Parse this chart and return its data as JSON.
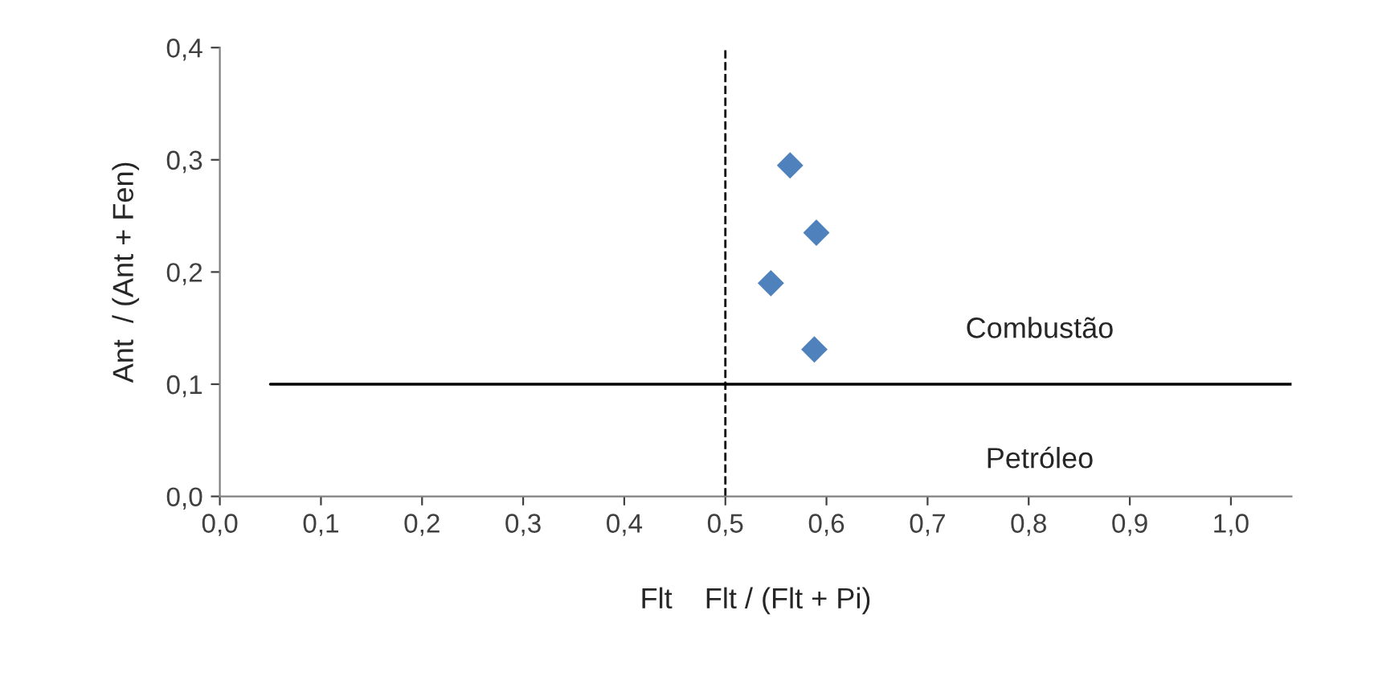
{
  "chart_data": {
    "type": "scatter",
    "xlabel": "Flt    Flt / (Flt + Pi)",
    "ylabel": "Ant  / (Ant + Fen)",
    "series": [
      {
        "color": "#4f81bd",
        "marker": "diamond",
        "x": [
          0.564,
          0.59,
          0.545,
          0.588
        ],
        "values": [
          0.295,
          0.235,
          0.19,
          0.131
        ]
      },
      {
        "type": "line",
        "color": "#000000",
        "marker": "none",
        "line_style": "solid",
        "x": [
          0.05,
          1.06
        ],
        "values": [
          0.1,
          0.1
        ]
      }
    ],
    "ref_lines": [
      {
        "axis": "x",
        "value": 0.5,
        "color": "#000000",
        "line_style": "dashed"
      }
    ],
    "annotations": [
      "Combustão",
      "Petróleo"
    ],
    "xlim": [
      0,
      1.06
    ],
    "ylim": [
      0,
      0.4
    ],
    "xticks": [
      {
        "value": 0,
        "label": "0,0"
      },
      {
        "value": 0.1,
        "label": "0,1"
      },
      {
        "value": 0.2,
        "label": "0,2"
      },
      {
        "value": 0.3,
        "label": "0,3"
      },
      {
        "value": 0.4,
        "label": "0,4"
      },
      {
        "value": 0.5,
        "label": "0,5"
      },
      {
        "value": 0.6,
        "label": "0,6"
      },
      {
        "value": 0.7,
        "label": "0,7"
      },
      {
        "value": 0.8,
        "label": "0,8"
      },
      {
        "value": 0.9,
        "label": "0,9"
      },
      {
        "value": 1.0,
        "label": "1,0"
      }
    ],
    "yticks": [
      {
        "value": 0,
        "label": "0,0"
      },
      {
        "value": 0.1,
        "label": "0,1"
      },
      {
        "value": 0.2,
        "label": "0,2"
      },
      {
        "value": 0.3,
        "label": "0,3"
      },
      {
        "value": 0.4,
        "label": "0,4"
      }
    ],
    "grid": false,
    "legend": false
  }
}
